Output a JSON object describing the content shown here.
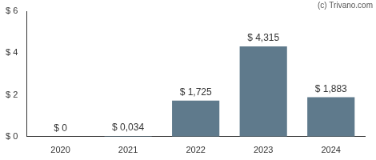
{
  "chart_data": {
    "type": "bar",
    "annotation": "(c) Trivano.com",
    "categories": [
      "2020",
      "2021",
      "2022",
      "2023",
      "2024"
    ],
    "values": [
      0,
      0.034,
      1.725,
      4.315,
      1.883
    ],
    "value_labels": [
      "$ 0",
      "$ 0,034",
      "$ 1,725",
      "$ 4,315",
      "$ 1,883"
    ],
    "color": "#5f7a8c",
    "ylim": [
      0,
      6
    ],
    "yticks": [
      {
        "value": 0,
        "label": "$ 0"
      },
      {
        "value": 2,
        "label": "$ 2"
      },
      {
        "value": 4,
        "label": "$ 4"
      },
      {
        "value": 6,
        "label": "$ 6"
      }
    ],
    "grid": false,
    "data_labels": true
  }
}
